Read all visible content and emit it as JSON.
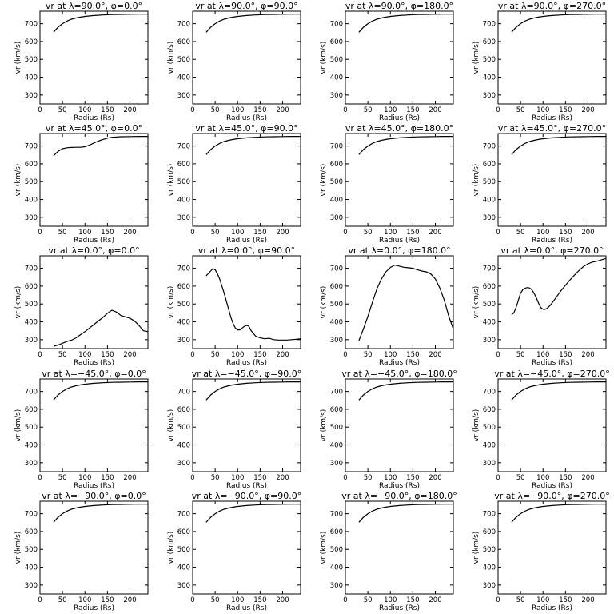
{
  "figure": {
    "xlabel": "Radius (Rs)",
    "ylabel": "vr (km/s)"
  },
  "chart_data": [
    {
      "type": "line",
      "title": "vr at λ=90.0°, φ=0.0°",
      "xlabel": "Radius (Rs)",
      "ylabel": "vr (km/s)",
      "xlim": [
        0,
        240
      ],
      "ylim": [
        250,
        770
      ],
      "xticks": [
        0,
        50,
        100,
        150,
        200
      ],
      "yticks": [
        300,
        400,
        500,
        600,
        700
      ],
      "x": [
        30,
        40,
        50,
        60,
        70,
        80,
        90,
        100,
        120,
        140,
        160,
        180,
        200,
        220,
        240
      ],
      "y": [
        652,
        680,
        700,
        715,
        725,
        732,
        737,
        741,
        746,
        749,
        751,
        752,
        753,
        754,
        754
      ]
    },
    {
      "type": "line",
      "title": "vr at λ=90.0°, φ=90.0°",
      "xlabel": "Radius (Rs)",
      "ylabel": "vr (km/s)",
      "xlim": [
        0,
        240
      ],
      "ylim": [
        250,
        770
      ],
      "xticks": [
        0,
        50,
        100,
        150,
        200
      ],
      "yticks": [
        300,
        400,
        500,
        600,
        700
      ],
      "x": [
        30,
        40,
        50,
        60,
        70,
        80,
        90,
        100,
        120,
        140,
        160,
        180,
        200,
        220,
        240
      ],
      "y": [
        652,
        680,
        700,
        715,
        725,
        732,
        737,
        741,
        746,
        749,
        751,
        752,
        753,
        754,
        754
      ]
    },
    {
      "type": "line",
      "title": "vr at λ=90.0°, φ=180.0°",
      "xlabel": "Radius (Rs)",
      "ylabel": "vr (km/s)",
      "xlim": [
        0,
        240
      ],
      "ylim": [
        250,
        770
      ],
      "xticks": [
        0,
        50,
        100,
        150,
        200
      ],
      "yticks": [
        300,
        400,
        500,
        600,
        700
      ],
      "x": [
        30,
        40,
        50,
        60,
        70,
        80,
        90,
        100,
        120,
        140,
        160,
        180,
        200,
        220,
        240
      ],
      "y": [
        652,
        680,
        700,
        715,
        725,
        732,
        737,
        741,
        746,
        749,
        751,
        752,
        753,
        754,
        754
      ]
    },
    {
      "type": "line",
      "title": "vr at λ=90.0°, φ=270.0°",
      "xlabel": "Radius (Rs)",
      "ylabel": "vr (km/s)",
      "xlim": [
        0,
        240
      ],
      "ylim": [
        250,
        770
      ],
      "xticks": [
        0,
        50,
        100,
        150,
        200
      ],
      "yticks": [
        300,
        400,
        500,
        600,
        700
      ],
      "x": [
        30,
        40,
        50,
        60,
        70,
        80,
        90,
        100,
        120,
        140,
        160,
        180,
        200,
        220,
        240
      ],
      "y": [
        652,
        680,
        700,
        715,
        725,
        732,
        737,
        741,
        746,
        749,
        751,
        752,
        753,
        754,
        754
      ]
    },
    {
      "type": "line",
      "title": "vr at λ=45.0°, φ=0.0°",
      "xlabel": "Radius (Rs)",
      "ylabel": "vr (km/s)",
      "xlim": [
        0,
        240
      ],
      "ylim": [
        250,
        770
      ],
      "xticks": [
        0,
        50,
        100,
        150,
        200
      ],
      "yticks": [
        300,
        400,
        500,
        600,
        700
      ],
      "x": [
        30,
        40,
        50,
        60,
        70,
        80,
        90,
        100,
        110,
        120,
        130,
        140,
        150,
        160,
        180,
        200,
        220,
        240
      ],
      "y": [
        645,
        670,
        685,
        690,
        692,
        693,
        693,
        696,
        705,
        717,
        728,
        737,
        744,
        749,
        752,
        753,
        754,
        754
      ]
    },
    {
      "type": "line",
      "title": "vr at λ=45.0°, φ=90.0°",
      "xlabel": "Radius (Rs)",
      "ylabel": "vr (km/s)",
      "xlim": [
        0,
        240
      ],
      "ylim": [
        250,
        770
      ],
      "xticks": [
        0,
        50,
        100,
        150,
        200
      ],
      "yticks": [
        300,
        400,
        500,
        600,
        700
      ],
      "x": [
        30,
        40,
        50,
        60,
        70,
        80,
        90,
        100,
        120,
        140,
        160,
        180,
        200,
        220,
        240
      ],
      "y": [
        652,
        680,
        700,
        715,
        725,
        732,
        737,
        741,
        746,
        749,
        751,
        752,
        753,
        754,
        754
      ]
    },
    {
      "type": "line",
      "title": "vr at λ=45.0°, φ=180.0°",
      "xlabel": "Radius (Rs)",
      "ylabel": "vr (km/s)",
      "xlim": [
        0,
        240
      ],
      "ylim": [
        250,
        770
      ],
      "xticks": [
        0,
        50,
        100,
        150,
        200
      ],
      "yticks": [
        300,
        400,
        500,
        600,
        700
      ],
      "x": [
        30,
        40,
        50,
        60,
        70,
        80,
        90,
        100,
        120,
        140,
        160,
        180,
        200,
        220,
        240
      ],
      "y": [
        652,
        680,
        700,
        715,
        725,
        732,
        737,
        741,
        746,
        749,
        751,
        752,
        753,
        754,
        754
      ]
    },
    {
      "type": "line",
      "title": "vr at λ=45.0°, φ=270.0°",
      "xlabel": "Radius (Rs)",
      "ylabel": "vr (km/s)",
      "xlim": [
        0,
        240
      ],
      "ylim": [
        250,
        770
      ],
      "xticks": [
        0,
        50,
        100,
        150,
        200
      ],
      "yticks": [
        300,
        400,
        500,
        600,
        700
      ],
      "x": [
        30,
        40,
        50,
        60,
        70,
        80,
        90,
        100,
        120,
        140,
        160,
        180,
        200,
        220,
        240
      ],
      "y": [
        652,
        680,
        700,
        715,
        725,
        732,
        737,
        741,
        746,
        749,
        751,
        752,
        753,
        754,
        754
      ]
    },
    {
      "type": "line",
      "title": "vr at λ=0.0°, φ=0.0°",
      "xlabel": "Radius (Rs)",
      "ylabel": "vr (km/s)",
      "xlim": [
        0,
        240
      ],
      "ylim": [
        250,
        770
      ],
      "xticks": [
        0,
        50,
        100,
        150,
        200
      ],
      "yticks": [
        300,
        400,
        500,
        600,
        700
      ],
      "x": [
        30,
        40,
        50,
        60,
        70,
        80,
        90,
        100,
        110,
        120,
        130,
        140,
        150,
        160,
        170,
        180,
        190,
        200,
        210,
        220,
        230,
        240
      ],
      "y": [
        263,
        270,
        280,
        290,
        297,
        310,
        328,
        345,
        365,
        385,
        405,
        425,
        448,
        465,
        455,
        435,
        428,
        420,
        405,
        380,
        350,
        345
      ]
    },
    {
      "type": "line",
      "title": "vr at λ=0.0°, φ=90.0°",
      "xlabel": "Radius (Rs)",
      "ylabel": "vr (km/s)",
      "xlim": [
        0,
        240
      ],
      "ylim": [
        250,
        770
      ],
      "xticks": [
        0,
        50,
        100,
        150,
        200
      ],
      "yticks": [
        300,
        400,
        500,
        600,
        700
      ],
      "x": [
        30,
        40,
        45,
        50,
        55,
        60,
        65,
        70,
        75,
        80,
        85,
        90,
        95,
        100,
        105,
        110,
        115,
        120,
        125,
        130,
        140,
        150,
        160,
        170,
        180,
        190,
        200,
        210,
        220,
        230,
        240
      ],
      "y": [
        658,
        685,
        698,
        692,
        670,
        640,
        600,
        560,
        515,
        470,
        425,
        390,
        365,
        355,
        355,
        365,
        375,
        380,
        375,
        350,
        320,
        310,
        305,
        308,
        300,
        298,
        298,
        298,
        300,
        302,
        305
      ]
    },
    {
      "type": "line",
      "title": "vr at λ=0.0°, φ=180.0°",
      "xlabel": "Radius (Rs)",
      "ylabel": "vr (km/s)",
      "xlim": [
        0,
        240
      ],
      "ylim": [
        250,
        770
      ],
      "xticks": [
        0,
        50,
        100,
        150,
        200
      ],
      "yticks": [
        300,
        400,
        500,
        600,
        700
      ],
      "x": [
        30,
        40,
        50,
        60,
        70,
        80,
        90,
        100,
        110,
        120,
        130,
        140,
        150,
        160,
        170,
        180,
        190,
        200,
        210,
        220,
        230,
        240
      ],
      "y": [
        295,
        360,
        430,
        510,
        585,
        640,
        680,
        705,
        718,
        712,
        706,
        703,
        700,
        692,
        685,
        680,
        668,
        640,
        590,
        520,
        430,
        360
      ]
    },
    {
      "type": "line",
      "title": "vr at λ=0.0°, φ=270.0°",
      "xlabel": "Radius (Rs)",
      "ylabel": "vr (km/s)",
      "xlim": [
        0,
        240
      ],
      "ylim": [
        250,
        770
      ],
      "xticks": [
        0,
        50,
        100,
        150,
        200
      ],
      "yticks": [
        300,
        400,
        500,
        600,
        700
      ],
      "x": [
        30,
        35,
        40,
        45,
        50,
        55,
        60,
        65,
        70,
        75,
        80,
        85,
        90,
        95,
        100,
        105,
        110,
        115,
        120,
        130,
        140,
        150,
        160,
        170,
        180,
        190,
        200,
        210,
        220,
        230,
        240
      ],
      "y": [
        440,
        450,
        480,
        520,
        560,
        580,
        588,
        592,
        590,
        580,
        560,
        535,
        505,
        480,
        470,
        470,
        478,
        490,
        505,
        540,
        575,
        605,
        635,
        662,
        688,
        710,
        725,
        735,
        740,
        748,
        755
      ]
    },
    {
      "type": "line",
      "title": "vr at λ=−45.0°, φ=0.0°",
      "xlabel": "Radius (Rs)",
      "ylabel": "vr (km/s)",
      "xlim": [
        0,
        240
      ],
      "ylim": [
        250,
        770
      ],
      "xticks": [
        0,
        50,
        100,
        150,
        200
      ],
      "yticks": [
        300,
        400,
        500,
        600,
        700
      ],
      "x": [
        30,
        40,
        50,
        60,
        70,
        80,
        90,
        100,
        120,
        140,
        160,
        180,
        200,
        220,
        240
      ],
      "y": [
        652,
        680,
        700,
        715,
        725,
        732,
        737,
        741,
        746,
        749,
        751,
        752,
        753,
        754,
        754
      ]
    },
    {
      "type": "line",
      "title": "vr at λ=−45.0°, φ=90.0°",
      "xlabel": "Radius (Rs)",
      "ylabel": "vr (km/s)",
      "xlim": [
        0,
        240
      ],
      "ylim": [
        250,
        770
      ],
      "xticks": [
        0,
        50,
        100,
        150,
        200
      ],
      "yticks": [
        300,
        400,
        500,
        600,
        700
      ],
      "x": [
        30,
        40,
        50,
        60,
        70,
        80,
        90,
        100,
        120,
        140,
        160,
        180,
        200,
        220,
        240
      ],
      "y": [
        652,
        680,
        700,
        715,
        725,
        732,
        737,
        741,
        746,
        749,
        751,
        752,
        753,
        754,
        754
      ]
    },
    {
      "type": "line",
      "title": "vr at λ=−45.0°, φ=180.0°",
      "xlabel": "Radius (Rs)",
      "ylabel": "vr (km/s)",
      "xlim": [
        0,
        240
      ],
      "ylim": [
        250,
        770
      ],
      "xticks": [
        0,
        50,
        100,
        150,
        200
      ],
      "yticks": [
        300,
        400,
        500,
        600,
        700
      ],
      "x": [
        30,
        40,
        50,
        60,
        70,
        80,
        90,
        100,
        120,
        140,
        160,
        180,
        200,
        220,
        240
      ],
      "y": [
        652,
        680,
        700,
        715,
        725,
        732,
        737,
        741,
        746,
        749,
        751,
        752,
        753,
        754,
        754
      ]
    },
    {
      "type": "line",
      "title": "vr at λ=−45.0°, φ=270.0°",
      "xlabel": "Radius (Rs)",
      "ylabel": "vr (km/s)",
      "xlim": [
        0,
        240
      ],
      "ylim": [
        250,
        770
      ],
      "xticks": [
        0,
        50,
        100,
        150,
        200
      ],
      "yticks": [
        300,
        400,
        500,
        600,
        700
      ],
      "x": [
        30,
        40,
        50,
        60,
        70,
        80,
        90,
        100,
        120,
        140,
        160,
        180,
        200,
        220,
        240
      ],
      "y": [
        652,
        680,
        700,
        715,
        725,
        732,
        737,
        741,
        746,
        749,
        751,
        752,
        753,
        754,
        754
      ]
    },
    {
      "type": "line",
      "title": "vr at λ=−90.0°, φ=0.0°",
      "xlabel": "Radius (Rs)",
      "ylabel": "vr (km/s)",
      "xlim": [
        0,
        240
      ],
      "ylim": [
        250,
        770
      ],
      "xticks": [
        0,
        50,
        100,
        150,
        200
      ],
      "yticks": [
        300,
        400,
        500,
        600,
        700
      ],
      "x": [
        30,
        40,
        50,
        60,
        70,
        80,
        90,
        100,
        120,
        140,
        160,
        180,
        200,
        220,
        240
      ],
      "y": [
        652,
        680,
        700,
        715,
        725,
        732,
        737,
        741,
        746,
        749,
        751,
        752,
        753,
        754,
        754
      ]
    },
    {
      "type": "line",
      "title": "vr at λ=−90.0°, φ=90.0°",
      "xlabel": "Radius (Rs)",
      "ylabel": "vr (km/s)",
      "xlim": [
        0,
        240
      ],
      "ylim": [
        250,
        770
      ],
      "xticks": [
        0,
        50,
        100,
        150,
        200
      ],
      "yticks": [
        300,
        400,
        500,
        600,
        700
      ],
      "x": [
        30,
        40,
        50,
        60,
        70,
        80,
        90,
        100,
        120,
        140,
        160,
        180,
        200,
        220,
        240
      ],
      "y": [
        652,
        680,
        700,
        715,
        725,
        732,
        737,
        741,
        746,
        749,
        751,
        752,
        753,
        754,
        754
      ]
    },
    {
      "type": "line",
      "title": "vr at λ=−90.0°, φ=180.0°",
      "xlabel": "Radius (Rs)",
      "ylabel": "vr (km/s)",
      "xlim": [
        0,
        240
      ],
      "ylim": [
        250,
        770
      ],
      "xticks": [
        0,
        50,
        100,
        150,
        200
      ],
      "yticks": [
        300,
        400,
        500,
        600,
        700
      ],
      "x": [
        30,
        40,
        50,
        60,
        70,
        80,
        90,
        100,
        120,
        140,
        160,
        180,
        200,
        220,
        240
      ],
      "y": [
        652,
        680,
        700,
        715,
        725,
        732,
        737,
        741,
        746,
        749,
        751,
        752,
        753,
        754,
        754
      ]
    },
    {
      "type": "line",
      "title": "vr at λ=−90.0°, φ=270.0°",
      "xlabel": "Radius (Rs)",
      "ylabel": "vr (km/s)",
      "xlim": [
        0,
        240
      ],
      "ylim": [
        250,
        770
      ],
      "xticks": [
        0,
        50,
        100,
        150,
        200
      ],
      "yticks": [
        300,
        400,
        500,
        600,
        700
      ],
      "x": [
        30,
        40,
        50,
        60,
        70,
        80,
        90,
        100,
        120,
        140,
        160,
        180,
        200,
        220,
        240
      ],
      "y": [
        652,
        680,
        700,
        715,
        725,
        732,
        737,
        741,
        746,
        749,
        751,
        752,
        753,
        754,
        754
      ]
    }
  ]
}
